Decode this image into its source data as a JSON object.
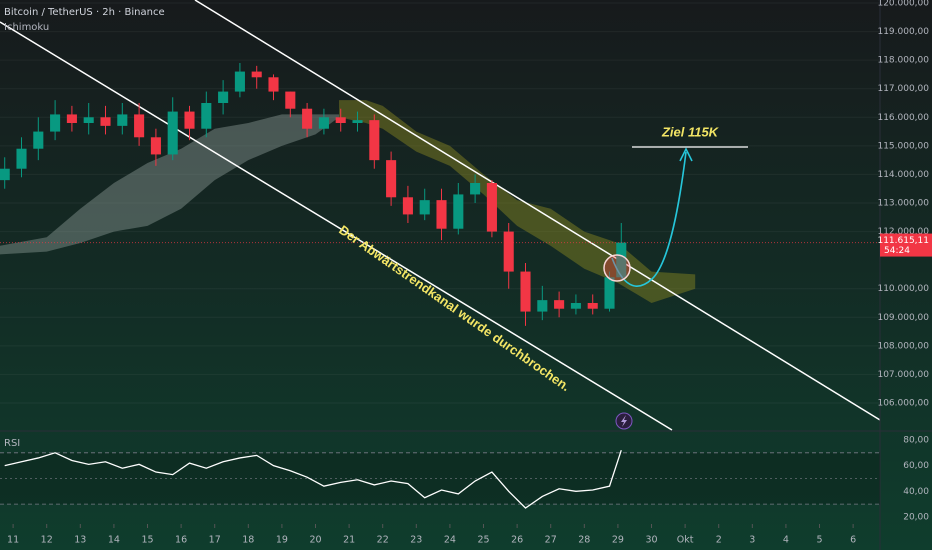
{
  "chart_data": [
    {
      "type": "candlestick",
      "title": "Bitcoin / TetherUS · 2h · Binance",
      "indicator": "Ichimoku",
      "x": [
        -0.25,
        0.25,
        0.75,
        1.25,
        1.75,
        2.25,
        2.75,
        3.25,
        3.75,
        4.25,
        4.75,
        5.25,
        5.75,
        6.25,
        6.75,
        7.25,
        7.75,
        8.25,
        8.75,
        9.25,
        9.75,
        10.25,
        10.75,
        11.25,
        11.75,
        12.25,
        12.75,
        13.25,
        13.75,
        14.25,
        14.75,
        15.25,
        15.75,
        16.25,
        16.75,
        17.25,
        17.75,
        18.1
      ],
      "open": [
        113800,
        114200,
        114900,
        115500,
        116100,
        115800,
        116000,
        115700,
        116100,
        115300,
        114700,
        116200,
        115600,
        116500,
        116900,
        117600,
        117400,
        116900,
        116300,
        115600,
        116000,
        115800,
        115900,
        114500,
        113200,
        112600,
        113100,
        112100,
        113300,
        113700,
        112000,
        110600,
        109200,
        109600,
        109300,
        109500,
        109300,
        110400
      ],
      "high": [
        114600,
        115300,
        116000,
        116600,
        116400,
        116500,
        116400,
        116500,
        116500,
        115600,
        116700,
        116400,
        116900,
        117300,
        117900,
        117800,
        117500,
        116900,
        116500,
        116300,
        116300,
        116200,
        116100,
        114800,
        113600,
        113500,
        113500,
        113700,
        114000,
        113800,
        112300,
        110900,
        110100,
        109900,
        109800,
        109800,
        110600,
        112300
      ],
      "low": [
        113500,
        113900,
        114500,
        115200,
        115500,
        115400,
        115400,
        115400,
        115000,
        114300,
        114500,
        115200,
        115300,
        116100,
        116700,
        117000,
        116600,
        116000,
        115300,
        115400,
        115500,
        115500,
        114200,
        112900,
        112300,
        112400,
        111700,
        111900,
        113000,
        111800,
        110000,
        108700,
        108900,
        109000,
        109100,
        109100,
        109200,
        110300
      ],
      "close": [
        114200,
        114900,
        115500,
        116100,
        115800,
        116000,
        115700,
        116100,
        115300,
        114700,
        116200,
        115600,
        116500,
        116900,
        117600,
        117400,
        116900,
        116300,
        115600,
        116000,
        115800,
        115900,
        114500,
        113200,
        112600,
        113100,
        112100,
        113300,
        113700,
        112000,
        110600,
        109200,
        109600,
        109300,
        109500,
        109300,
        110400,
        111615.11
      ],
      "up_color": "#089981",
      "down_color": "#f23645",
      "clouds": [
        {
          "color": "#8a9a94",
          "x": [
            -0.4,
            1,
            2,
            3,
            4,
            5,
            6,
            7,
            8,
            9,
            9.7
          ],
          "upper": [
            111500,
            111800,
            112800,
            113700,
            114400,
            114900,
            115600,
            115800,
            116100,
            116100,
            116100
          ],
          "lower": [
            111200,
            111300,
            111600,
            112000,
            112200,
            112800,
            113800,
            114500,
            115000,
            115400,
            116000
          ]
        },
        {
          "color": "#8c8a22",
          "x": [
            9.7,
            10.5,
            11,
            12,
            13,
            14,
            15,
            16,
            17,
            18,
            19,
            20.3
          ],
          "upper": [
            116600,
            116600,
            116400,
            115500,
            115000,
            114000,
            113100,
            112800,
            112000,
            111600,
            110600,
            110500
          ],
          "lower": [
            116000,
            115800,
            115600,
            114800,
            114300,
            113300,
            112200,
            111500,
            110700,
            110200,
            109500,
            110000
          ]
        }
      ],
      "last_price": {
        "value": 111615.11,
        "label": "111.615,11"
      },
      "countdown": "54:24",
      "annotations": [
        "Der Abwärtstrendkanal wurde durchbrochen.",
        "Ziel 115K"
      ],
      "xlim": [
        -0.39,
        25.8
      ],
      "ylim": [
        105055,
        120105
      ],
      "yticks": [
        {
          "value": 120000,
          "label": "120.000,00"
        },
        {
          "value": 119000,
          "label": "119.000,00"
        },
        {
          "value": 118000,
          "label": "118.000,00"
        },
        {
          "value": 117000,
          "label": "117.000,00"
        },
        {
          "value": 116000,
          "label": "116.000,00"
        },
        {
          "value": 115000,
          "label": "115.000,00"
        },
        {
          "value": 114000,
          "label": "114.000,00"
        },
        {
          "value": 113000,
          "label": "113.000,00"
        },
        {
          "value": 112000,
          "label": "112.000,00"
        },
        {
          "value": 110000,
          "label": "110.000,00"
        },
        {
          "value": 109000,
          "label": "109.000,00"
        },
        {
          "value": 108000,
          "label": "108.000,00"
        },
        {
          "value": 107000,
          "label": "107.000,00"
        },
        {
          "value": 106000,
          "label": "106.000,00"
        }
      ],
      "grid": true
    },
    {
      "type": "line",
      "title": "RSI",
      "color": "#ffffff",
      "x": [
        -0.25,
        0.25,
        0.75,
        1.25,
        1.75,
        2.25,
        2.75,
        3.25,
        3.75,
        4.25,
        4.75,
        5.25,
        5.75,
        6.25,
        6.75,
        7.25,
        7.75,
        8.25,
        8.75,
        9.25,
        9.75,
        10.25,
        10.75,
        11.25,
        11.75,
        12.25,
        12.75,
        13.25,
        13.75,
        14.25,
        14.75,
        15.25,
        15.75,
        16.25,
        16.75,
        17.25,
        17.75,
        18.1
      ],
      "values": [
        60,
        63,
        66,
        70,
        64,
        61,
        63,
        58,
        61,
        55,
        53,
        62,
        58,
        63,
        66,
        68,
        60,
        56,
        51,
        44,
        47,
        49,
        45,
        48,
        46,
        35,
        41,
        38,
        48,
        55,
        40,
        27,
        36,
        42,
        40,
        41,
        44,
        72
      ],
      "bands": [
        30,
        70
      ],
      "midline": 50,
      "xlim": [
        -0.39,
        25.8
      ],
      "ylim": [
        16.1,
        86.2
      ],
      "yticks": [
        {
          "value": 80,
          "label": "80,00"
        },
        {
          "value": 60,
          "label": "60,00"
        },
        {
          "value": 40,
          "label": "40,00"
        },
        {
          "value": 20,
          "label": "20,00"
        }
      ],
      "xticks": [
        {
          "value": 0,
          "label": "11"
        },
        {
          "value": 1,
          "label": "12"
        },
        {
          "value": 2,
          "label": "13"
        },
        {
          "value": 3,
          "label": "14"
        },
        {
          "value": 4,
          "label": "15"
        },
        {
          "value": 5,
          "label": "16"
        },
        {
          "value": 6,
          "label": "17"
        },
        {
          "value": 7,
          "label": "18"
        },
        {
          "value": 8,
          "label": "19"
        },
        {
          "value": 9,
          "label": "20"
        },
        {
          "value": 10,
          "label": "21"
        },
        {
          "value": 11,
          "label": "22"
        },
        {
          "value": 12,
          "label": "23"
        },
        {
          "value": 13,
          "label": "24"
        },
        {
          "value": 14,
          "label": "25"
        },
        {
          "value": 15,
          "label": "26"
        },
        {
          "value": 16,
          "label": "27"
        },
        {
          "value": 17,
          "label": "28"
        },
        {
          "value": 18,
          "label": "29"
        },
        {
          "value": 19,
          "label": "30"
        },
        {
          "value": 20,
          "label": "Okt"
        },
        {
          "value": 21,
          "label": "2"
        },
        {
          "value": 22,
          "label": "3"
        },
        {
          "value": 23,
          "label": "4"
        },
        {
          "value": 24,
          "label": "5"
        },
        {
          "value": 25,
          "label": "6"
        }
      ]
    }
  ]
}
